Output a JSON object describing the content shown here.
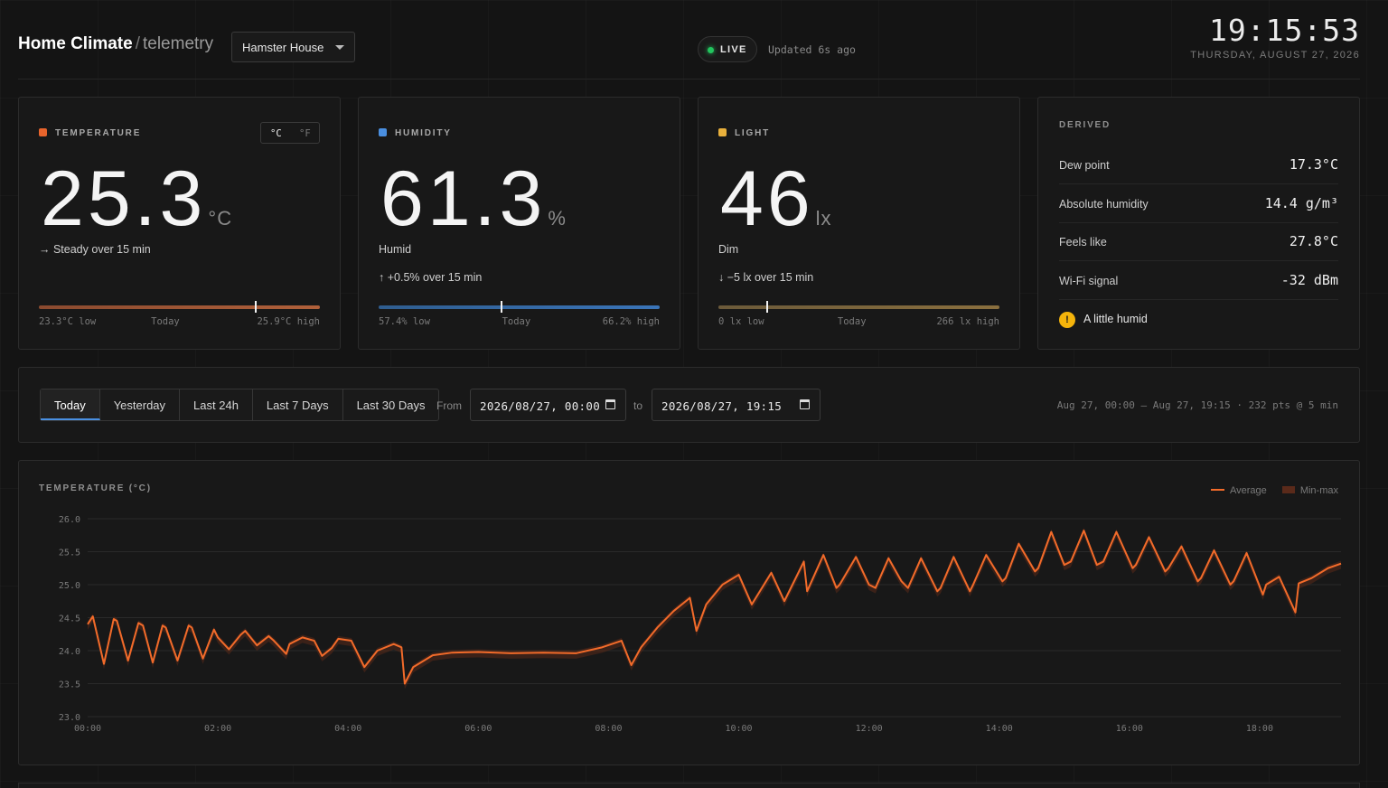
{
  "header": {
    "app_title": "Home Climate",
    "separator": "/",
    "app_subtitle": "telemetry",
    "location_select": "Hamster House",
    "live_label": "LIVE",
    "updated_text": "Updated 6s ago",
    "clock": "19:15:53",
    "date": "THURSDAY, AUGUST 27, 2026"
  },
  "temperature": {
    "title": "TEMPERATURE",
    "color": "#e8642c",
    "value": "25.3",
    "unit": "°C",
    "unit_c": "°C",
    "unit_f": "°F",
    "trend": "→ Steady over 15 min",
    "low": "23.3°C low",
    "mid": "Today",
    "high": "25.9°C high",
    "position": 0.77
  },
  "humidity": {
    "title": "HUMIDITY",
    "color": "#4a8fe0",
    "value": "61.3",
    "unit": "%",
    "status": "Humid",
    "trend": "↑ +0.5% over 15 min",
    "low": "57.4% low",
    "mid": "Today",
    "high": "66.2% high",
    "position": 0.44
  },
  "light": {
    "title": "LIGHT",
    "color": "#e8b03c",
    "value": "46",
    "unit": "lx",
    "status": "Dim",
    "trend": "↓ −5 lx over 15 min",
    "low": "0 lx low",
    "mid": "Today",
    "high": "266 lx high",
    "position": 0.17
  },
  "derived": {
    "title": "DERIVED",
    "rows": [
      {
        "label": "Dew point",
        "value": "17.3°C"
      },
      {
        "label": "Absolute humidity",
        "value": "14.4 g/m³"
      },
      {
        "label": "Feels like",
        "value": "27.8°C"
      },
      {
        "label": "Wi-Fi signal",
        "value": "-32 dBm"
      }
    ],
    "warning": "A little humid",
    "warning_icon": "!"
  },
  "toolbar": {
    "tabs": [
      "Today",
      "Yesterday",
      "Last 24h",
      "Last 7 Days",
      "Last 30 Days"
    ],
    "active_tab": "Today",
    "from_label": "From",
    "from_value": "2026/08/27, 00:00",
    "to_label": "to",
    "to_value": "2026/08/27, 19:15",
    "summary": "Aug 27, 00:00 — Aug 27, 19:15 · 232 pts @ 5 min"
  },
  "chart_data": {
    "type": "line",
    "title": "TEMPERATURE (°C)",
    "xlabel": "",
    "ylabel": "",
    "ylim": [
      23.0,
      26.0
    ],
    "xlim": [
      0,
      19.25
    ],
    "yticks": [
      "26.0",
      "25.5",
      "25.0",
      "24.5",
      "24.0",
      "23.5",
      "23.0"
    ],
    "xticks": [
      "00:00",
      "02:00",
      "04:00",
      "06:00",
      "08:00",
      "10:00",
      "12:00",
      "14:00",
      "16:00",
      "18:00"
    ],
    "legend": [
      "Average",
      "Min-max"
    ],
    "line_color": "#f26b2a",
    "band_color": "#5a2a1a",
    "series": [
      {
        "name": "Average",
        "x": [
          0.0,
          0.08,
          0.25,
          0.4,
          0.45,
          0.62,
          0.78,
          0.85,
          1.0,
          1.15,
          1.2,
          1.38,
          1.55,
          1.6,
          1.77,
          1.94,
          2.0,
          2.17,
          2.35,
          2.42,
          2.6,
          2.78,
          2.85,
          3.05,
          3.1,
          3.3,
          3.48,
          3.6,
          3.75,
          3.85,
          4.05,
          4.25,
          4.45,
          4.7,
          4.82,
          4.87,
          5.0,
          5.3,
          5.6,
          6.0,
          6.5,
          7.0,
          7.5,
          7.9,
          8.2,
          8.35,
          8.5,
          8.75,
          9.0,
          9.25,
          9.35,
          9.5,
          9.75,
          10.0,
          10.2,
          10.5,
          10.7,
          11.0,
          11.05,
          11.3,
          11.5,
          11.55,
          11.8,
          12.0,
          12.1,
          12.3,
          12.5,
          12.6,
          12.8,
          13.05,
          13.1,
          13.3,
          13.55,
          13.6,
          13.8,
          14.05,
          14.1,
          14.3,
          14.55,
          14.6,
          14.8,
          15.0,
          15.1,
          15.3,
          15.5,
          15.6,
          15.8,
          16.05,
          16.1,
          16.3,
          16.55,
          16.6,
          16.8,
          17.05,
          17.1,
          17.3,
          17.55,
          17.6,
          17.8,
          18.05,
          18.1,
          18.3,
          18.55,
          18.6,
          18.8,
          19.05,
          19.25
        ],
        "values": [
          24.4,
          24.52,
          23.8,
          24.48,
          24.45,
          23.85,
          24.42,
          24.38,
          23.82,
          24.38,
          24.35,
          23.85,
          24.38,
          24.35,
          23.88,
          24.32,
          24.2,
          24.02,
          24.24,
          24.3,
          24.08,
          24.22,
          24.16,
          23.95,
          24.1,
          24.2,
          24.15,
          23.92,
          24.04,
          24.18,
          24.15,
          23.75,
          24.0,
          24.1,
          24.05,
          23.5,
          23.75,
          23.93,
          23.97,
          23.98,
          23.96,
          23.97,
          23.96,
          24.05,
          24.15,
          23.78,
          24.05,
          24.35,
          24.6,
          24.8,
          24.3,
          24.7,
          25.0,
          25.15,
          24.7,
          25.18,
          24.75,
          25.35,
          24.9,
          25.45,
          24.95,
          25.0,
          25.42,
          25.0,
          24.95,
          25.4,
          25.05,
          24.95,
          25.4,
          24.9,
          24.95,
          25.42,
          24.9,
          25.0,
          25.45,
          25.05,
          25.1,
          25.62,
          25.2,
          25.25,
          25.8,
          25.3,
          25.35,
          25.82,
          25.3,
          25.35,
          25.8,
          25.25,
          25.3,
          25.72,
          25.2,
          25.25,
          25.58,
          25.05,
          25.1,
          25.52,
          25.0,
          25.05,
          25.48,
          24.85,
          25.0,
          25.12,
          24.58,
          25.02,
          25.1,
          25.25,
          25.32
        ]
      }
    ]
  }
}
